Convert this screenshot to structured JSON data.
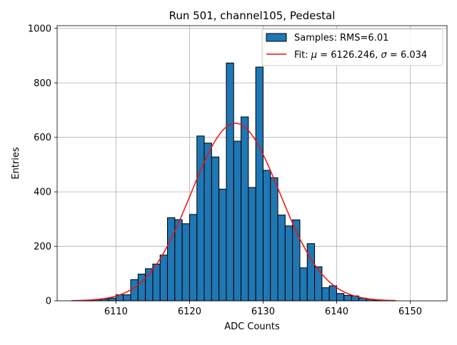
{
  "chart_data": {
    "type": "bar",
    "title": "Run 501, channel105, Pedestal",
    "xlabel": "ADC Counts",
    "ylabel": "Entries",
    "xlim": [
      6102,
      6155
    ],
    "ylim": [
      0,
      1010
    ],
    "xticks": [
      6110,
      6120,
      6130,
      6140,
      6150
    ],
    "yticks": [
      0,
      200,
      400,
      600,
      800,
      1000
    ],
    "grid": true,
    "legend_position": "upper right",
    "colors": {
      "bar_fill": "#1f77b4",
      "bar_edge": "#000000",
      "fit_line": "#ee1111",
      "grid": "#b0b0b0"
    },
    "histogram": {
      "name": "Samples: RMS=6.01",
      "bin_width": 1,
      "bin_lefts": [
        6104,
        6105,
        6106,
        6107,
        6108,
        6109,
        6110,
        6111,
        6112,
        6113,
        6114,
        6115,
        6116,
        6117,
        6118,
        6119,
        6120,
        6121,
        6122,
        6123,
        6124,
        6125,
        6126,
        6127,
        6128,
        6129,
        6130,
        6131,
        6132,
        6133,
        6134,
        6135,
        6136,
        6137,
        6138,
        6139,
        6140,
        6141,
        6142,
        6143,
        6144,
        6145,
        6146,
        6147
      ],
      "counts": [
        1,
        1,
        2,
        5,
        7,
        10,
        22,
        22,
        78,
        98,
        118,
        135,
        168,
        305,
        298,
        283,
        317,
        605,
        579,
        528,
        410,
        873,
        586,
        675,
        416,
        858,
        479,
        452,
        315,
        275,
        297,
        121,
        210,
        125,
        48,
        55,
        27,
        20,
        18,
        10,
        6,
        2,
        1,
        1
      ]
    },
    "fit": {
      "name_prefix": "Fit: ",
      "mu_symbol": "μ",
      "sigma_symbol": "σ",
      "mu": 6126.246,
      "sigma": 6.034,
      "mu_text": "6126.246",
      "sigma_text": "6.034",
      "amplitude": 652,
      "x_range": [
        6104,
        6148
      ]
    }
  }
}
